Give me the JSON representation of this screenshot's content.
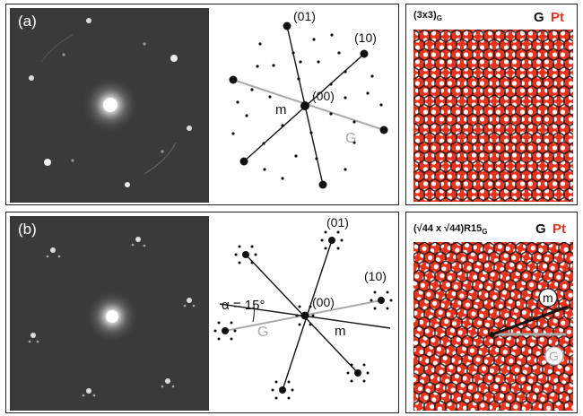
{
  "figure": {
    "panel_a": {
      "label": "(a)",
      "diagram_labels": {
        "l01": "(01)",
        "l10": "(10)",
        "l00": "(00)",
        "m": "m",
        "g": "G"
      },
      "lattice_title": "(3x3)",
      "lattice_title_sub": "G",
      "legend_g": "G",
      "legend_pt": "Pt"
    },
    "panel_b": {
      "label": "(b)",
      "diagram_labels": {
        "l01": "(01)",
        "l10": "(10)",
        "l00": "(00)",
        "m": "m",
        "g": "G",
        "alpha": "α = 15°"
      },
      "lattice_title": "(√44 x √44)R15",
      "lattice_title_sub": "G",
      "legend_g": "G",
      "legend_pt": "Pt",
      "lattice_m": "m",
      "lattice_g": "G"
    },
    "colors": {
      "pt": "#e8321e",
      "graphene": "#111111",
      "leed_bg": "#3b3b3b",
      "g_line": "#aaaaaa"
    }
  }
}
